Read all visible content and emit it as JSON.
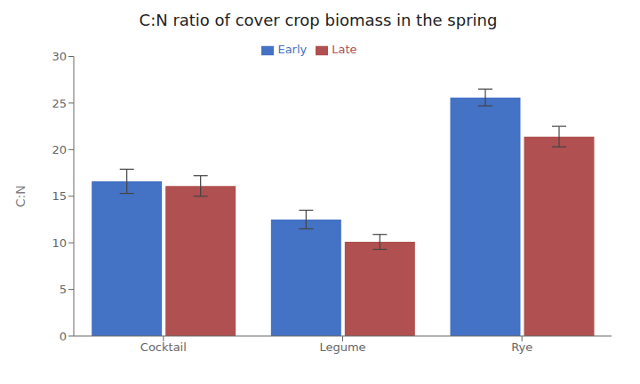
{
  "chart_data": {
    "type": "bar",
    "title": "C:N ratio of cover crop biomass in the spring",
    "categories": [
      "Cocktail",
      "Legume",
      "Rye"
    ],
    "series": [
      {
        "name": "Early",
        "color": "#4472C4",
        "values": [
          16.6,
          12.5,
          25.6
        ],
        "errors": [
          1.3,
          1.0,
          0.9
        ]
      },
      {
        "name": "Late",
        "color": "#B05050",
        "values": [
          16.1,
          10.1,
          21.4
        ],
        "errors": [
          1.1,
          0.8,
          1.1
        ]
      }
    ],
    "ylabel": "C:N",
    "ylim": [
      0,
      30
    ],
    "yticks": [
      0,
      5,
      10,
      15,
      20,
      25,
      30
    ],
    "legend": "upper center",
    "grid": false
  }
}
